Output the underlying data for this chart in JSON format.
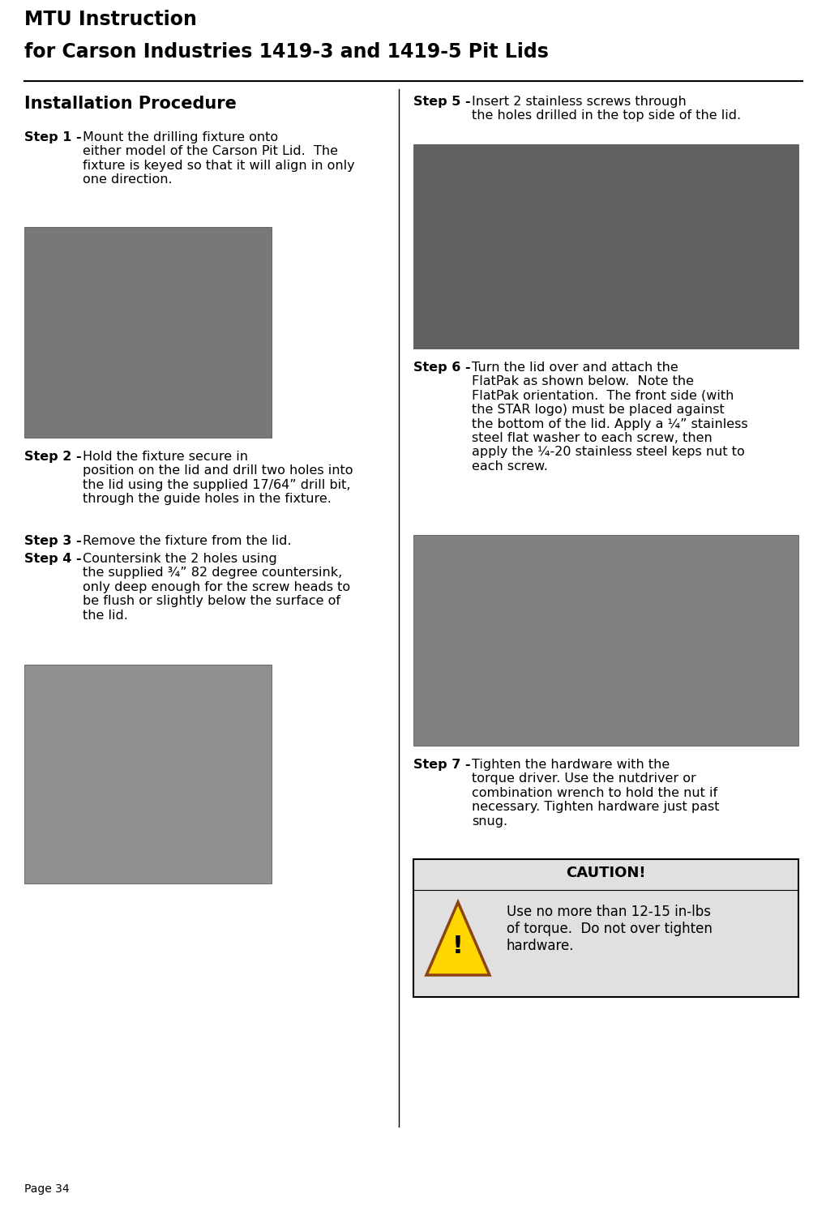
{
  "page_width": 10.2,
  "page_height": 14.99,
  "bg_color": "#ffffff",
  "title_line1": "MTU Instruction",
  "title_line2": "for Carson Industries 1419-3 and 1419-5 Pit Lids",
  "section_title": "Installation Procedure",
  "step1_bold": "Step 1 -",
  "step1_text": "Mount the drilling fixture onto\neither model of the Carson Pit Lid.  The\nfixture is keyed so that it will align in only\none direction.",
  "step2_bold": "Step 2 -",
  "step2_text": "Hold the fixture secure in\nposition on the lid and drill two holes into\nthe lid using the supplied 17/64” drill bit,\nthrough the guide holes in the fixture.",
  "step3_bold": "Step 3 -",
  "step3_text": "Remove the fixture from the lid.",
  "step4_bold": "Step 4 -",
  "step4_text": "Countersink the 2 holes using\nthe supplied ¾” 82 degree countersink,\nonly deep enough for the screw heads to\nbe flush or slightly below the surface of\nthe lid.",
  "step5_bold": "Step 5 -",
  "step5_text": "Insert 2 stainless screws through\nthe holes drilled in the top side of the lid.",
  "step6_bold": "Step 6 -",
  "step6_text": "Turn the lid over and attach the\nFlatPak as shown below.  Note the\nFlatPak orientation.  The front side (with\nthe STAR logo) must be placed against\nthe bottom of the lid. Apply a ¼” stainless\nsteel flat washer to each screw, then\napply the ¼-20 stainless steel keps nut to\neach screw.",
  "step7_bold": "Step 7 -",
  "step7_text": "Tighten the hardware with the\ntorque driver. Use the nutdriver or\ncombination wrench to hold the nut if\nnecessary. Tighten hardware just past\nsnug.",
  "caution_title": "CAUTION!",
  "caution_text": "Use no more than 12-15 in-lbs\nof torque.  Do not over tighten\nhardware.",
  "page_label": "Page 34",
  "img1_color": "#787878",
  "img2_color": "#909090",
  "img3_color": "#606060",
  "img4_color": "#808080",
  "caution_bg": "#e0e0e0",
  "caution_border": "#000000"
}
